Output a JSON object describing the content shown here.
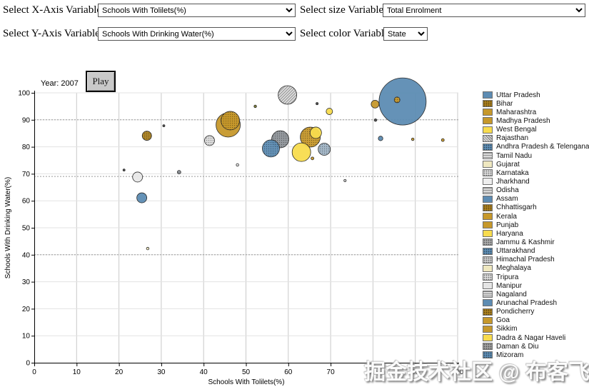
{
  "controls": {
    "x_axis": {
      "label": "Select X-Axis Variable",
      "value": "Schools With Tolilets(%)"
    },
    "y_axis": {
      "label": "Select Y-Axis Variable",
      "value": "Schools With Drinking Water(%)"
    },
    "size": {
      "label": "Select size Variable",
      "value": "Total Enrolment"
    },
    "color": {
      "label": "Select color Variable",
      "value": "State"
    }
  },
  "chart": {
    "year_label": "Year: 2007",
    "play_label": "Play"
  },
  "watermark": "掘金技术社区 @ 布客飞龙",
  "palette": {
    "blue": "#5D8CB3",
    "gold": "#C6982B",
    "darkgold": "#AA7F1E",
    "yellow": "#F8DC4E",
    "paleyellow": "#EFE8C0",
    "lightgray": "#E8E8E8",
    "gray": "#D9D9D9",
    "darkgray": "#8E9499",
    "bluegray": "#9FB3C4",
    "dark": "#4A4A4A",
    "olive": "#7A7A30"
  },
  "chart_data": {
    "type": "bubble",
    "title": "",
    "xlabel": "Schools With Tolilets(%)",
    "ylabel": "Schools With Drinking Water(%)",
    "xlim": [
      0,
      100
    ],
    "ylim": [
      0,
      100
    ],
    "x_ticks": [
      0,
      10,
      20,
      30,
      40,
      50,
      60,
      70,
      80,
      90,
      100
    ],
    "y_ticks": [
      0,
      10,
      20,
      30,
      40,
      50,
      60,
      70,
      80,
      90,
      100
    ],
    "dashed_y_lines": [
      90,
      69,
      40
    ],
    "grid": true,
    "legend_position": "right",
    "year": 2007,
    "size_encoding": "Total Enrolment",
    "color_encoding": "State",
    "bubbles": [
      {
        "x": 87.0,
        "y": 96.8,
        "r": 33,
        "color": "blue",
        "pattern": "solid"
      },
      {
        "x": 45.8,
        "y": 88.1,
        "r": 17,
        "color": "gold",
        "pattern": "solid"
      },
      {
        "x": 46.3,
        "y": 89.7,
        "r": 13,
        "color": "gold",
        "pattern": "dots"
      },
      {
        "x": 65.2,
        "y": 83.6,
        "r": 14,
        "color": "gold",
        "pattern": "dots"
      },
      {
        "x": 63.1,
        "y": 78.0,
        "r": 13,
        "color": "yellow",
        "pattern": "solid"
      },
      {
        "x": 59.8,
        "y": 99.2,
        "r": 13,
        "color": "gray",
        "pattern": "hatch"
      },
      {
        "x": 58.1,
        "y": 82.8,
        "r": 12,
        "color": "darkgray",
        "pattern": "dots"
      },
      {
        "x": 55.9,
        "y": 79.4,
        "r": 12,
        "color": "blue",
        "pattern": "dots"
      },
      {
        "x": 66.5,
        "y": 85.2,
        "r": 8,
        "color": "yellow",
        "pattern": "solid"
      },
      {
        "x": 68.5,
        "y": 79.1,
        "r": 8.5,
        "color": "bluegray",
        "pattern": "dots"
      },
      {
        "x": 41.4,
        "y": 82.3,
        "r": 7,
        "color": "gray",
        "pattern": "dots"
      },
      {
        "x": 24.4,
        "y": 68.8,
        "r": 7,
        "color": "lightgray",
        "pattern": "solid"
      },
      {
        "x": 25.4,
        "y": 61.1,
        "r": 7,
        "color": "blue",
        "pattern": "solid"
      },
      {
        "x": 26.6,
        "y": 84.1,
        "r": 6.5,
        "color": "darkgold",
        "pattern": "dots"
      },
      {
        "x": 80.5,
        "y": 95.8,
        "r": 5.5,
        "color": "gold",
        "pattern": "solid"
      },
      {
        "x": 69.7,
        "y": 93.1,
        "r": 4.5,
        "color": "yellow",
        "pattern": "solid"
      },
      {
        "x": 85.7,
        "y": 97.4,
        "r": 4,
        "color": "gold",
        "pattern": "dots"
      },
      {
        "x": 81.8,
        "y": 83.1,
        "r": 3.2,
        "color": "blue",
        "pattern": "solid"
      },
      {
        "x": 34.2,
        "y": 70.6,
        "r": 2.5,
        "color": "darkgray",
        "pattern": "dots"
      },
      {
        "x": 65.7,
        "y": 75.7,
        "r": 2,
        "color": "gold",
        "pattern": "solid"
      },
      {
        "x": 96.5,
        "y": 82.5,
        "r": 2,
        "color": "gold",
        "pattern": "solid"
      },
      {
        "x": 30.6,
        "y": 87.8,
        "r": 1.5,
        "color": "dark",
        "pattern": "solid"
      },
      {
        "x": 21.2,
        "y": 71.4,
        "r": 1.5,
        "color": "dark",
        "pattern": "solid"
      },
      {
        "x": 48.0,
        "y": 73.3,
        "r": 1.8,
        "color": "lightgray",
        "pattern": "solid"
      },
      {
        "x": 52.2,
        "y": 95.0,
        "r": 1.8,
        "color": "olive",
        "pattern": "solid"
      },
      {
        "x": 66.8,
        "y": 96.0,
        "r": 1.6,
        "color": "dark",
        "pattern": "solid"
      },
      {
        "x": 80.6,
        "y": 89.9,
        "r": 1.8,
        "color": "dark",
        "pattern": "solid"
      },
      {
        "x": 89.4,
        "y": 82.8,
        "r": 1.8,
        "color": "gold",
        "pattern": "solid"
      },
      {
        "x": 73.4,
        "y": 67.5,
        "r": 1.6,
        "color": "gray",
        "pattern": "solid"
      },
      {
        "x": 26.8,
        "y": 42.3,
        "r": 1.8,
        "color": "paleyellow",
        "pattern": "solid"
      }
    ]
  },
  "legend": {
    "items": [
      {
        "label": "Uttar Pradesh",
        "color": "#5D8CB3",
        "pattern": "solid"
      },
      {
        "label": "Bihar",
        "color": "#AA7F1E",
        "pattern": "dots"
      },
      {
        "label": "Maharashtra",
        "color": "#C6982B",
        "pattern": "solid"
      },
      {
        "label": "Madhya Pradesh",
        "color": "#C6982B",
        "pattern": "solid"
      },
      {
        "label": "West Bengal",
        "color": "#F8DC4E",
        "pattern": "solid"
      },
      {
        "label": "Rajasthan",
        "color": "#D9D9D9",
        "pattern": "hatch"
      },
      {
        "label": "Andhra Pradesh & Telengana",
        "color": "#5D8CB3",
        "pattern": "dots"
      },
      {
        "label": "Tamil Nadu",
        "color": "#DCDCDC",
        "pattern": "lines"
      },
      {
        "label": "Gujarat",
        "color": "#EFE8C0",
        "pattern": "solid"
      },
      {
        "label": "Karnataka",
        "color": "#D9D9D9",
        "pattern": "dots"
      },
      {
        "label": "Jharkhand",
        "color": "#EEEEEE",
        "pattern": "solid"
      },
      {
        "label": "Odisha",
        "color": "#D9D9D9",
        "pattern": "lines"
      },
      {
        "label": "Assam",
        "color": "#5D8CB3",
        "pattern": "solid"
      },
      {
        "label": "Chhattisgarh",
        "color": "#AA7F1E",
        "pattern": "dots"
      },
      {
        "label": "Kerala",
        "color": "#C6982B",
        "pattern": "solid"
      },
      {
        "label": "Punjab",
        "color": "#C6982B",
        "pattern": "solid"
      },
      {
        "label": "Haryana",
        "color": "#F8DC4E",
        "pattern": "solid"
      },
      {
        "label": "Jammu & Kashmir",
        "color": "#A9A9A9",
        "pattern": "dots"
      },
      {
        "label": "Uttarakhand",
        "color": "#5D8CB3",
        "pattern": "dots"
      },
      {
        "label": "Himachal Pradesh",
        "color": "#C9C9C9",
        "pattern": "dots"
      },
      {
        "label": "Meghalaya",
        "color": "#EFE8C0",
        "pattern": "solid"
      },
      {
        "label": "Tripura",
        "color": "#D9D9D9",
        "pattern": "dots"
      },
      {
        "label": "Manipur",
        "color": "#E5E5E5",
        "pattern": "solid"
      },
      {
        "label": "Nagaland",
        "color": "#D9D9D9",
        "pattern": "lines"
      },
      {
        "label": "Arunachal Pradesh",
        "color": "#5D8CB3",
        "pattern": "solid"
      },
      {
        "label": "Pondicherry",
        "color": "#AA7F1E",
        "pattern": "dots"
      },
      {
        "label": "Goa",
        "color": "#C6982B",
        "pattern": "solid"
      },
      {
        "label": "Sikkim",
        "color": "#C6982B",
        "pattern": "solid"
      },
      {
        "label": "Dadra & Nagar Haveli",
        "color": "#F8DC4E",
        "pattern": "solid"
      },
      {
        "label": "Daman & Diu",
        "color": "#9E9E9E",
        "pattern": "dots"
      },
      {
        "label": "Mizoram",
        "color": "#5D8CB3",
        "pattern": "dots"
      }
    ]
  }
}
